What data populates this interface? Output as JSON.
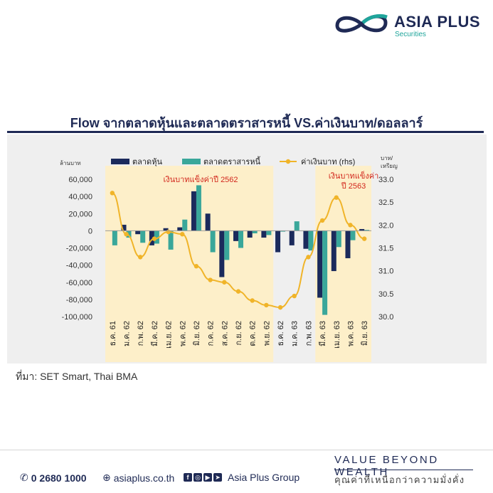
{
  "brand": {
    "name": "ASIA PLUS",
    "sub": "Securities",
    "colors": {
      "navy": "#1f2a55",
      "teal": "#1fa59b",
      "gold": "#f0b429"
    }
  },
  "source": "ที่มา: SET Smart, Thai BMA",
  "footer": {
    "phone": "0 2680 1000",
    "website": "asiaplus.co.th",
    "social": "Asia Plus Group",
    "slogan": "VALUE BEYOND WEALTH",
    "slogan_th": "คุณค่าที่เหนือกว่าความมั่งคั่ง",
    "icons": [
      "phone-icon",
      "globe-icon",
      "facebook-icon",
      "instagram-icon",
      "youtube-icon",
      "telegram-icon"
    ]
  },
  "chart_data": {
    "type": "bar",
    "title": "Flow จากตลาดหุ้นและตลาดตราสารหนี้ VS.ค่าเงินบาท/ดอลลาร์",
    "left_axis_label": "ล้านบาท",
    "right_axis_label_1": "บาท/",
    "right_axis_label_2": "เหรียญ",
    "categories": [
      "ธ.ค. 61",
      "ม.ค. 62",
      "ก.พ. 62",
      "มี.ค. 62",
      "เม.ย. 62",
      "พ.ค. 62",
      "มิ.ย. 62",
      "ก.ค. 62",
      "ส.ค. 62",
      "ก.ย. 62",
      "ต.ค. 62",
      "พ.ย. 62",
      "ธ.ค. 62",
      "ม.ค. 63",
      "ก.พ. 63",
      "มี.ค. 63",
      "เม.ย. 63",
      "พ.ค. 63",
      "มิ.ย. 63"
    ],
    "series": [
      {
        "name": "ตลาดหุ้น",
        "color": "#1b2a5c",
        "axis": "left",
        "values": [
          0,
          7000,
          -4000,
          -17000,
          3000,
          4000,
          46000,
          20000,
          -54000,
          -12000,
          -8000,
          -8000,
          -25000,
          -17000,
          -21000,
          -78000,
          -47000,
          -32000,
          2000
        ]
      },
      {
        "name": "ตลาดตราสารหนี้",
        "color": "#3aa79a",
        "axis": "left",
        "values": [
          -17000,
          -8000,
          -14000,
          -15000,
          -22000,
          13000,
          53000,
          -25000,
          -34000,
          -20000,
          -3000,
          -5000,
          -1000,
          11000,
          -23000,
          -98000,
          -19000,
          -11000,
          1000
        ]
      },
      {
        "name": "ค่าเงินบาท (rhs)",
        "color": "#f0b429",
        "axis": "right",
        "type": "line",
        "values": [
          32.7,
          31.8,
          31.3,
          31.7,
          31.85,
          31.8,
          31.1,
          30.8,
          30.75,
          30.55,
          30.35,
          30.25,
          30.2,
          30.45,
          31.3,
          32.1,
          32.6,
          32.0,
          31.7
        ]
      }
    ],
    "left_ticks": [
      "60,000",
      "40,000",
      "20,000",
      "0",
      "-20,000",
      "-40,000",
      "-60,000",
      "-80,000",
      "-100,000"
    ],
    "left_tick_values": [
      60000,
      40000,
      20000,
      0,
      -20000,
      -40000,
      -60000,
      -80000,
      -100000
    ],
    "right_ticks": [
      "33.0",
      "32.5",
      "32.0",
      "31.5",
      "31.0",
      "30.5",
      "30.0"
    ],
    "right_tick_values": [
      33.0,
      32.5,
      32.0,
      31.5,
      31.0,
      30.5,
      30.0
    ],
    "ylim_left": [
      -100000,
      60000
    ],
    "ylim_right": [
      30.0,
      33.0
    ],
    "highlights": [
      {
        "from": 0,
        "to": 11,
        "color": "#fdefc9",
        "label": "เงินบาทแข็งค่าปี 2562"
      },
      {
        "from": 15,
        "to": 18,
        "color": "#fdefc9",
        "label": "เงินบาทแข็งค่า ปี 2563"
      }
    ],
    "legend_position": "top",
    "grid": false
  }
}
